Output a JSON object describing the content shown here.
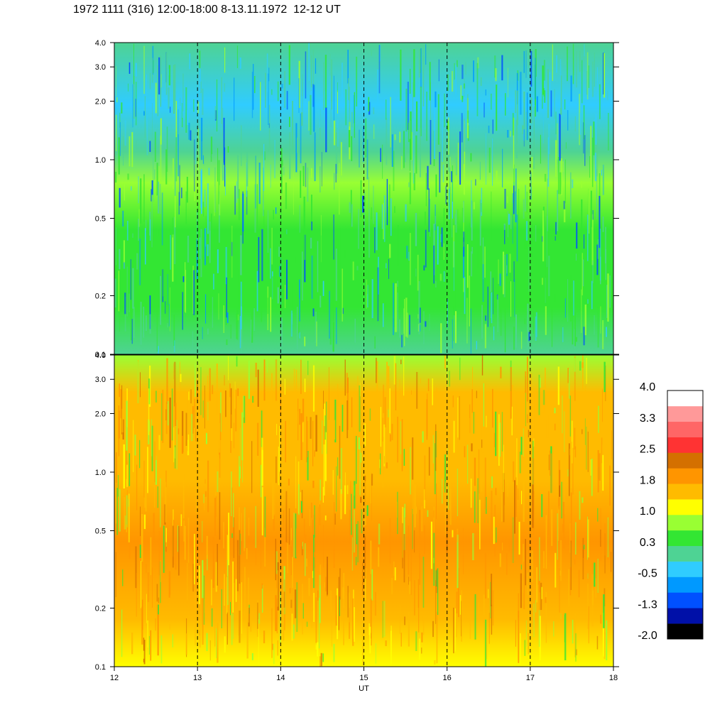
{
  "title": "1972 1111 (316) 12:00-18:00 8-13.11.1972  12-12 UT",
  "chart_data": [
    {
      "type": "heatmap",
      "panel": "top",
      "x_range": [
        12,
        18
      ],
      "x_ticks": [
        12,
        13,
        14,
        15,
        16,
        17,
        18
      ],
      "y_scale": "log",
      "y_range": [
        0.1,
        4.0
      ],
      "y_tick_values": [
        0.1,
        0.2,
        0.5,
        1.0,
        2.0,
        3.0,
        4.0
      ],
      "y_tick_labels": [
        "0.1",
        "0.2",
        "0.5",
        "1.0",
        "2.0",
        "3.0",
        "4.0"
      ],
      "dashed_verticals": [
        13,
        14,
        15,
        16,
        17
      ],
      "dominant_levels": [
        "green",
        "cyan",
        "blue"
      ]
    },
    {
      "type": "heatmap",
      "panel": "bottom",
      "x_range": [
        12,
        18
      ],
      "x_ticks": [
        12,
        13,
        14,
        15,
        16,
        17,
        18
      ],
      "x_tick_labels": [
        "12",
        "13",
        "14",
        "15",
        "16",
        "17",
        "18"
      ],
      "xlabel": "UT",
      "y_scale": "log",
      "y_range": [
        0.1,
        4.0
      ],
      "y_tick_values": [
        0.1,
        0.2,
        0.5,
        1.0,
        2.0,
        3.0,
        4.0
      ],
      "y_tick_labels": [
        "0.1",
        "0.2",
        "0.5",
        "1.0",
        "2.0",
        "3.0",
        "4.0"
      ],
      "dashed_verticals": [
        13,
        14,
        15,
        16,
        17
      ],
      "dominant_levels": [
        "orange",
        "yellow",
        "green"
      ]
    }
  ],
  "colorbar": {
    "colors": [
      "#000000",
      "#0010a8",
      "#0050ff",
      "#0099ff",
      "#30ccff",
      "#4ed394",
      "#33e633",
      "#99ff33",
      "#ffff00",
      "#ffbb00",
      "#ff9500",
      "#d47000",
      "#ff3333",
      "#ff6666",
      "#ff9999",
      "#ffffff"
    ],
    "labels": [
      "-2.0",
      "-1.3",
      "-0.5",
      "0.3",
      "1.0",
      "1.8",
      "2.5",
      "3.3",
      "4.0"
    ]
  }
}
